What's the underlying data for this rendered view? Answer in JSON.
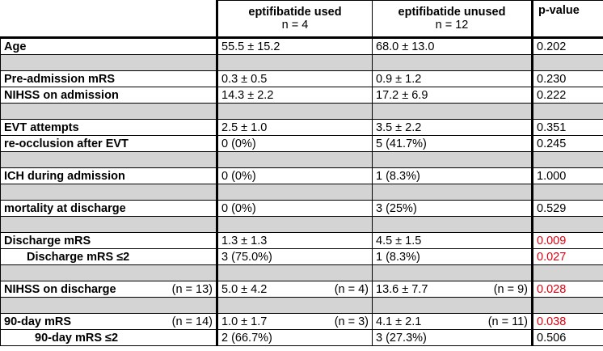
{
  "header": {
    "group1_title": "eptifibatide used",
    "group1_n": "n = 4",
    "group2_title": "eptifibatide unused",
    "group2_n": "n = 12",
    "pvalue_title": "p-value"
  },
  "rows": [
    {
      "type": "data",
      "label": "Age",
      "used": "55.5 ± 15.2",
      "unused": "68.0 ± 13.0",
      "p": "0.202",
      "sig": false
    },
    {
      "type": "gap"
    },
    {
      "type": "data",
      "label": "Pre-admission mRS",
      "used": "0.3 ± 0.5",
      "unused": "0.9 ± 1.2",
      "p": "0.230",
      "sig": false
    },
    {
      "type": "data",
      "label": "NIHSS on admission",
      "used": "14.3 ± 2.2",
      "unused": "17.2 ± 6.9",
      "p": "0.222",
      "sig": false
    },
    {
      "type": "gap"
    },
    {
      "type": "data",
      "label": "EVT attempts",
      "used": "2.5 ± 1.0",
      "unused": "3.5 ± 2.2",
      "p": "0.351",
      "sig": false
    },
    {
      "type": "data",
      "label": "re-occlusion after EVT",
      "used": "0 (0%)",
      "unused": "5 (41.7%)",
      "p": "0.245",
      "sig": false
    },
    {
      "type": "gap"
    },
    {
      "type": "data",
      "label": "ICH during admission",
      "used": "0 (0%)",
      "unused": "1 (8.3%)",
      "p": "1.000",
      "sig": false
    },
    {
      "type": "gap"
    },
    {
      "type": "data",
      "label": "mortality at discharge",
      "used": "0 (0%)",
      "unused": "3 (25%)",
      "p": "0.529",
      "sig": false
    },
    {
      "type": "gap"
    },
    {
      "type": "data",
      "label": "Discharge mRS",
      "used": "1.3 ± 1.3",
      "unused": "4.5 ± 1.5",
      "p": "0.009",
      "sig": true
    },
    {
      "type": "data",
      "label": "Discharge mRS ≤2",
      "indent": 1,
      "used": "3 (75.0%)",
      "unused": "1 (8.3%)",
      "p": "0.027",
      "sig": true
    },
    {
      "type": "gap"
    },
    {
      "type": "data",
      "label": "NIHSS on discharge",
      "label_n": "(n = 13)",
      "used": "5.0 ± 4.2",
      "used_n": "(n = 4)",
      "unused": "13.6 ± 7.7",
      "unused_n": "(n = 9)",
      "p": "0.028",
      "sig": true
    },
    {
      "type": "gap"
    },
    {
      "type": "data",
      "label": "90-day mRS",
      "label_n": "(n = 14)",
      "used": "1.0 ± 1.7",
      "used_n": "(n = 3)",
      "unused": "4.1 ± 2.1",
      "unused_n": "(n = 11)",
      "p": "0.038",
      "sig": true
    },
    {
      "type": "data",
      "label": "90-day mRS ≤2",
      "indent": 2,
      "used": "2 (66.7%)",
      "unused": "3 (27.3%)",
      "p": "0.506",
      "sig": false
    }
  ]
}
